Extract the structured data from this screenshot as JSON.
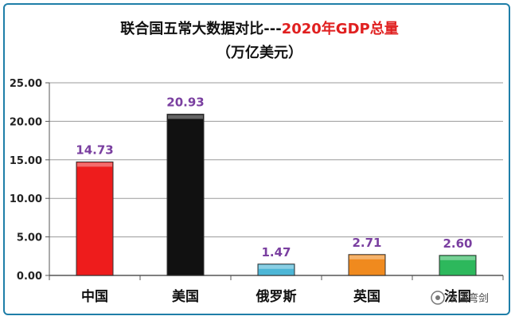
{
  "chart_data": {
    "type": "bar",
    "title_part1": "联合国五常大数据对比---",
    "title_part2": "2020年GDP总量",
    "subtitle": "（万亿美元）",
    "categories": [
      "中国",
      "美国",
      "俄罗斯",
      "英国",
      "法国"
    ],
    "values": [
      14.73,
      20.93,
      1.47,
      2.71,
      2.6
    ],
    "value_labels": [
      "14.73",
      "20.93",
      "1.47",
      "2.71",
      "2.60"
    ],
    "yticks": [
      "0.00",
      "5.00",
      "10.00",
      "15.00",
      "20.00",
      "25.00"
    ],
    "ylim": [
      0,
      25
    ],
    "grid": true,
    "colors": [
      "#ee1c1c",
      "#111111",
      "#4cb6d6",
      "#f08a1e",
      "#2db85c"
    ],
    "value_label_color": "#7a3fa0"
  },
  "watermark": {
    "text": "法国弯剑"
  }
}
